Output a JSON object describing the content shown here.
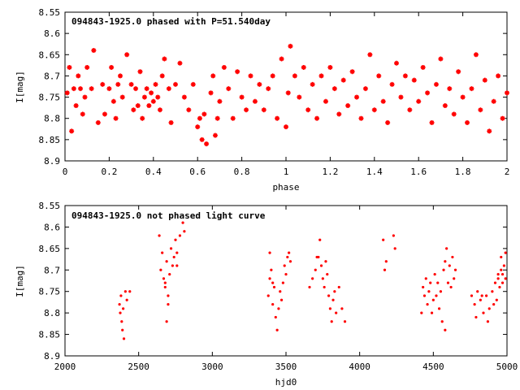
{
  "chart_data": [
    {
      "type": "scatter",
      "title": "094843-1925.0 phased with P=51.540day",
      "xlabel": "phase",
      "ylabel": "I[mag]",
      "xlim": [
        0,
        2
      ],
      "ylim": [
        8.55,
        8.9
      ],
      "y_inverted": true,
      "xticks": [
        "0",
        "0.2",
        "0.4",
        "0.6",
        "0.8",
        "1",
        "1.2",
        "1.4",
        "1.6",
        "1.8",
        "2"
      ],
      "yticks": [
        "8.55",
        "8.6",
        "8.65",
        "8.7",
        "8.75",
        "8.8",
        "8.85",
        "8.9"
      ],
      "color": "#ff0000",
      "marker": "asterisk",
      "points": [
        [
          0.01,
          8.74
        ],
        [
          0.02,
          8.68
        ],
        [
          0.03,
          8.83
        ],
        [
          0.04,
          8.73
        ],
        [
          0.05,
          8.77
        ],
        [
          0.06,
          8.7
        ],
        [
          0.07,
          8.73
        ],
        [
          0.08,
          8.79
        ],
        [
          0.09,
          8.75
        ],
        [
          0.1,
          8.68
        ],
        [
          0.12,
          8.73
        ],
        [
          0.13,
          8.64
        ],
        [
          0.15,
          8.81
        ],
        [
          0.17,
          8.72
        ],
        [
          0.18,
          8.79
        ],
        [
          0.2,
          8.73
        ],
        [
          0.21,
          8.68
        ],
        [
          0.22,
          8.76
        ],
        [
          0.23,
          8.8
        ],
        [
          0.24,
          8.72
        ],
        [
          0.25,
          8.7
        ],
        [
          0.26,
          8.75
        ],
        [
          0.28,
          8.65
        ],
        [
          0.3,
          8.72
        ],
        [
          0.31,
          8.78
        ],
        [
          0.32,
          8.73
        ],
        [
          0.33,
          8.77
        ],
        [
          0.34,
          8.69
        ],
        [
          0.35,
          8.8
        ],
        [
          0.36,
          8.75
        ],
        [
          0.37,
          8.73
        ],
        [
          0.38,
          8.77
        ],
        [
          0.39,
          8.74
        ],
        [
          0.4,
          8.76
        ],
        [
          0.41,
          8.72
        ],
        [
          0.42,
          8.75
        ],
        [
          0.43,
          8.78
        ],
        [
          0.44,
          8.7
        ],
        [
          0.45,
          8.66
        ],
        [
          0.47,
          8.73
        ],
        [
          0.48,
          8.81
        ],
        [
          0.5,
          8.72
        ],
        [
          0.52,
          8.67
        ],
        [
          0.54,
          8.75
        ],
        [
          0.56,
          8.78
        ],
        [
          0.58,
          8.72
        ],
        [
          0.6,
          8.82
        ],
        [
          0.61,
          8.8
        ],
        [
          0.62,
          8.85
        ],
        [
          0.63,
          8.79
        ],
        [
          0.64,
          8.86
        ],
        [
          0.66,
          8.74
        ],
        [
          0.67,
          8.7
        ],
        [
          0.68,
          8.84
        ],
        [
          0.69,
          8.8
        ],
        [
          0.7,
          8.76
        ],
        [
          0.72,
          8.68
        ],
        [
          0.74,
          8.73
        ],
        [
          0.76,
          8.8
        ],
        [
          0.78,
          8.69
        ],
        [
          0.8,
          8.75
        ],
        [
          0.82,
          8.78
        ],
        [
          0.84,
          8.7
        ],
        [
          0.86,
          8.76
        ],
        [
          0.88,
          8.72
        ],
        [
          0.9,
          8.78
        ],
        [
          0.92,
          8.73
        ],
        [
          0.94,
          8.7
        ],
        [
          0.96,
          8.8
        ],
        [
          0.98,
          8.66
        ],
        [
          1.0,
          8.82
        ],
        [
          1.01,
          8.74
        ],
        [
          1.02,
          8.63
        ],
        [
          1.04,
          8.7
        ],
        [
          1.06,
          8.75
        ],
        [
          1.08,
          8.68
        ],
        [
          1.1,
          8.78
        ],
        [
          1.12,
          8.72
        ],
        [
          1.14,
          8.8
        ],
        [
          1.16,
          8.7
        ],
        [
          1.18,
          8.76
        ],
        [
          1.2,
          8.68
        ],
        [
          1.22,
          8.73
        ],
        [
          1.24,
          8.79
        ],
        [
          1.26,
          8.71
        ],
        [
          1.28,
          8.77
        ],
        [
          1.3,
          8.69
        ],
        [
          1.32,
          8.75
        ],
        [
          1.34,
          8.8
        ],
        [
          1.36,
          8.73
        ],
        [
          1.38,
          8.65
        ],
        [
          1.4,
          8.78
        ],
        [
          1.42,
          8.7
        ],
        [
          1.44,
          8.76
        ],
        [
          1.46,
          8.81
        ],
        [
          1.48,
          8.72
        ],
        [
          1.5,
          8.67
        ],
        [
          1.52,
          8.75
        ],
        [
          1.54,
          8.7
        ],
        [
          1.56,
          8.78
        ],
        [
          1.58,
          8.71
        ],
        [
          1.6,
          8.76
        ],
        [
          1.62,
          8.68
        ],
        [
          1.64,
          8.74
        ],
        [
          1.66,
          8.81
        ],
        [
          1.68,
          8.72
        ],
        [
          1.7,
          8.66
        ],
        [
          1.72,
          8.77
        ],
        [
          1.74,
          8.73
        ],
        [
          1.76,
          8.79
        ],
        [
          1.78,
          8.69
        ],
        [
          1.8,
          8.75
        ],
        [
          1.82,
          8.81
        ],
        [
          1.84,
          8.73
        ],
        [
          1.86,
          8.65
        ],
        [
          1.88,
          8.78
        ],
        [
          1.9,
          8.71
        ],
        [
          1.92,
          8.83
        ],
        [
          1.94,
          8.76
        ],
        [
          1.96,
          8.7
        ],
        [
          1.98,
          8.8
        ],
        [
          2.0,
          8.74
        ]
      ]
    },
    {
      "type": "scatter",
      "title": "094843-1925.0 not phased light curve",
      "xlabel": "hjd0",
      "ylabel": "I[mag]",
      "xlim": [
        2000,
        5000
      ],
      "ylim": [
        8.55,
        8.9
      ],
      "y_inverted": true,
      "xticks": [
        "2000",
        "2500",
        "3000",
        "3500",
        "4000",
        "4500",
        "5000"
      ],
      "yticks": [
        "8.55",
        "8.6",
        "8.65",
        "8.7",
        "8.75",
        "8.8",
        "8.85",
        "8.9"
      ],
      "color": "#ff0000",
      "marker": "dot",
      "points": [
        [
          2370,
          8.78
        ],
        [
          2375,
          8.8
        ],
        [
          2380,
          8.76
        ],
        [
          2385,
          8.82
        ],
        [
          2390,
          8.84
        ],
        [
          2395,
          8.79
        ],
        [
          2400,
          8.86
        ],
        [
          2410,
          8.75
        ],
        [
          2420,
          8.77
        ],
        [
          2440,
          8.75
        ],
        [
          2640,
          8.62
        ],
        [
          2650,
          8.7
        ],
        [
          2660,
          8.66
        ],
        [
          2670,
          8.72
        ],
        [
          2680,
          8.74
        ],
        [
          2690,
          8.68
        ],
        [
          2700,
          8.76
        ],
        [
          2710,
          8.71
        ],
        [
          2720,
          8.65
        ],
        [
          2730,
          8.69
        ],
        [
          2740,
          8.67
        ],
        [
          2750,
          8.63
        ],
        [
          2760,
          8.66
        ],
        [
          2780,
          8.62
        ],
        [
          2800,
          8.59
        ],
        [
          2810,
          8.61
        ],
        [
          2690,
          8.82
        ],
        [
          2700,
          8.78
        ],
        [
          2680,
          8.73
        ],
        [
          2760,
          8.69
        ],
        [
          3380,
          8.76
        ],
        [
          3390,
          8.72
        ],
        [
          3400,
          8.7
        ],
        [
          3410,
          8.78
        ],
        [
          3420,
          8.74
        ],
        [
          3430,
          8.81
        ],
        [
          3440,
          8.84
        ],
        [
          3450,
          8.79
        ],
        [
          3460,
          8.75
        ],
        [
          3470,
          8.77
        ],
        [
          3480,
          8.73
        ],
        [
          3490,
          8.69
        ],
        [
          3500,
          8.71
        ],
        [
          3510,
          8.67
        ],
        [
          3520,
          8.66
        ],
        [
          3530,
          8.68
        ],
        [
          3390,
          8.66
        ],
        [
          3410,
          8.73
        ],
        [
          3660,
          8.74
        ],
        [
          3680,
          8.72
        ],
        [
          3700,
          8.7
        ],
        [
          3720,
          8.67
        ],
        [
          3730,
          8.63
        ],
        [
          3740,
          8.69
        ],
        [
          3750,
          8.72
        ],
        [
          3760,
          8.74
        ],
        [
          3770,
          8.68
        ],
        [
          3780,
          8.71
        ],
        [
          3790,
          8.76
        ],
        [
          3800,
          8.79
        ],
        [
          3810,
          8.82
        ],
        [
          3820,
          8.77
        ],
        [
          3830,
          8.75
        ],
        [
          3840,
          8.8
        ],
        [
          3860,
          8.74
        ],
        [
          3880,
          8.79
        ],
        [
          3900,
          8.82
        ],
        [
          3710,
          8.67
        ],
        [
          4160,
          8.63
        ],
        [
          4170,
          8.7
        ],
        [
          4180,
          8.68
        ],
        [
          4230,
          8.62
        ],
        [
          4240,
          8.65
        ],
        [
          4420,
          8.8
        ],
        [
          4430,
          8.74
        ],
        [
          4440,
          8.76
        ],
        [
          4450,
          8.72
        ],
        [
          4460,
          8.78
        ],
        [
          4470,
          8.75
        ],
        [
          4480,
          8.73
        ],
        [
          4490,
          8.8
        ],
        [
          4500,
          8.77
        ],
        [
          4510,
          8.71
        ],
        [
          4520,
          8.76
        ],
        [
          4530,
          8.73
        ],
        [
          4540,
          8.79
        ],
        [
          4550,
          8.75
        ],
        [
          4560,
          8.82
        ],
        [
          4570,
          8.7
        ],
        [
          4580,
          8.68
        ],
        [
          4590,
          8.65
        ],
        [
          4600,
          8.73
        ],
        [
          4610,
          8.69
        ],
        [
          4620,
          8.74
        ],
        [
          4630,
          8.67
        ],
        [
          4640,
          8.72
        ],
        [
          4650,
          8.7
        ],
        [
          4580,
          8.84
        ],
        [
          4760,
          8.76
        ],
        [
          4780,
          8.78
        ],
        [
          4800,
          8.75
        ],
        [
          4820,
          8.77
        ],
        [
          4840,
          8.8
        ],
        [
          4860,
          8.76
        ],
        [
          4880,
          8.79
        ],
        [
          4900,
          8.75
        ],
        [
          4920,
          8.73
        ],
        [
          4930,
          8.77
        ],
        [
          4940,
          8.72
        ],
        [
          4950,
          8.74
        ],
        [
          4960,
          8.7
        ],
        [
          4970,
          8.73
        ],
        [
          4980,
          8.69
        ],
        [
          4990,
          8.66
        ],
        [
          4960,
          8.67
        ],
        [
          4970,
          8.71
        ],
        [
          4990,
          8.72
        ],
        [
          4870,
          8.82
        ],
        [
          4830,
          8.76
        ],
        [
          4790,
          8.81
        ],
        [
          4910,
          8.78
        ],
        [
          4940,
          8.71
        ]
      ]
    }
  ]
}
